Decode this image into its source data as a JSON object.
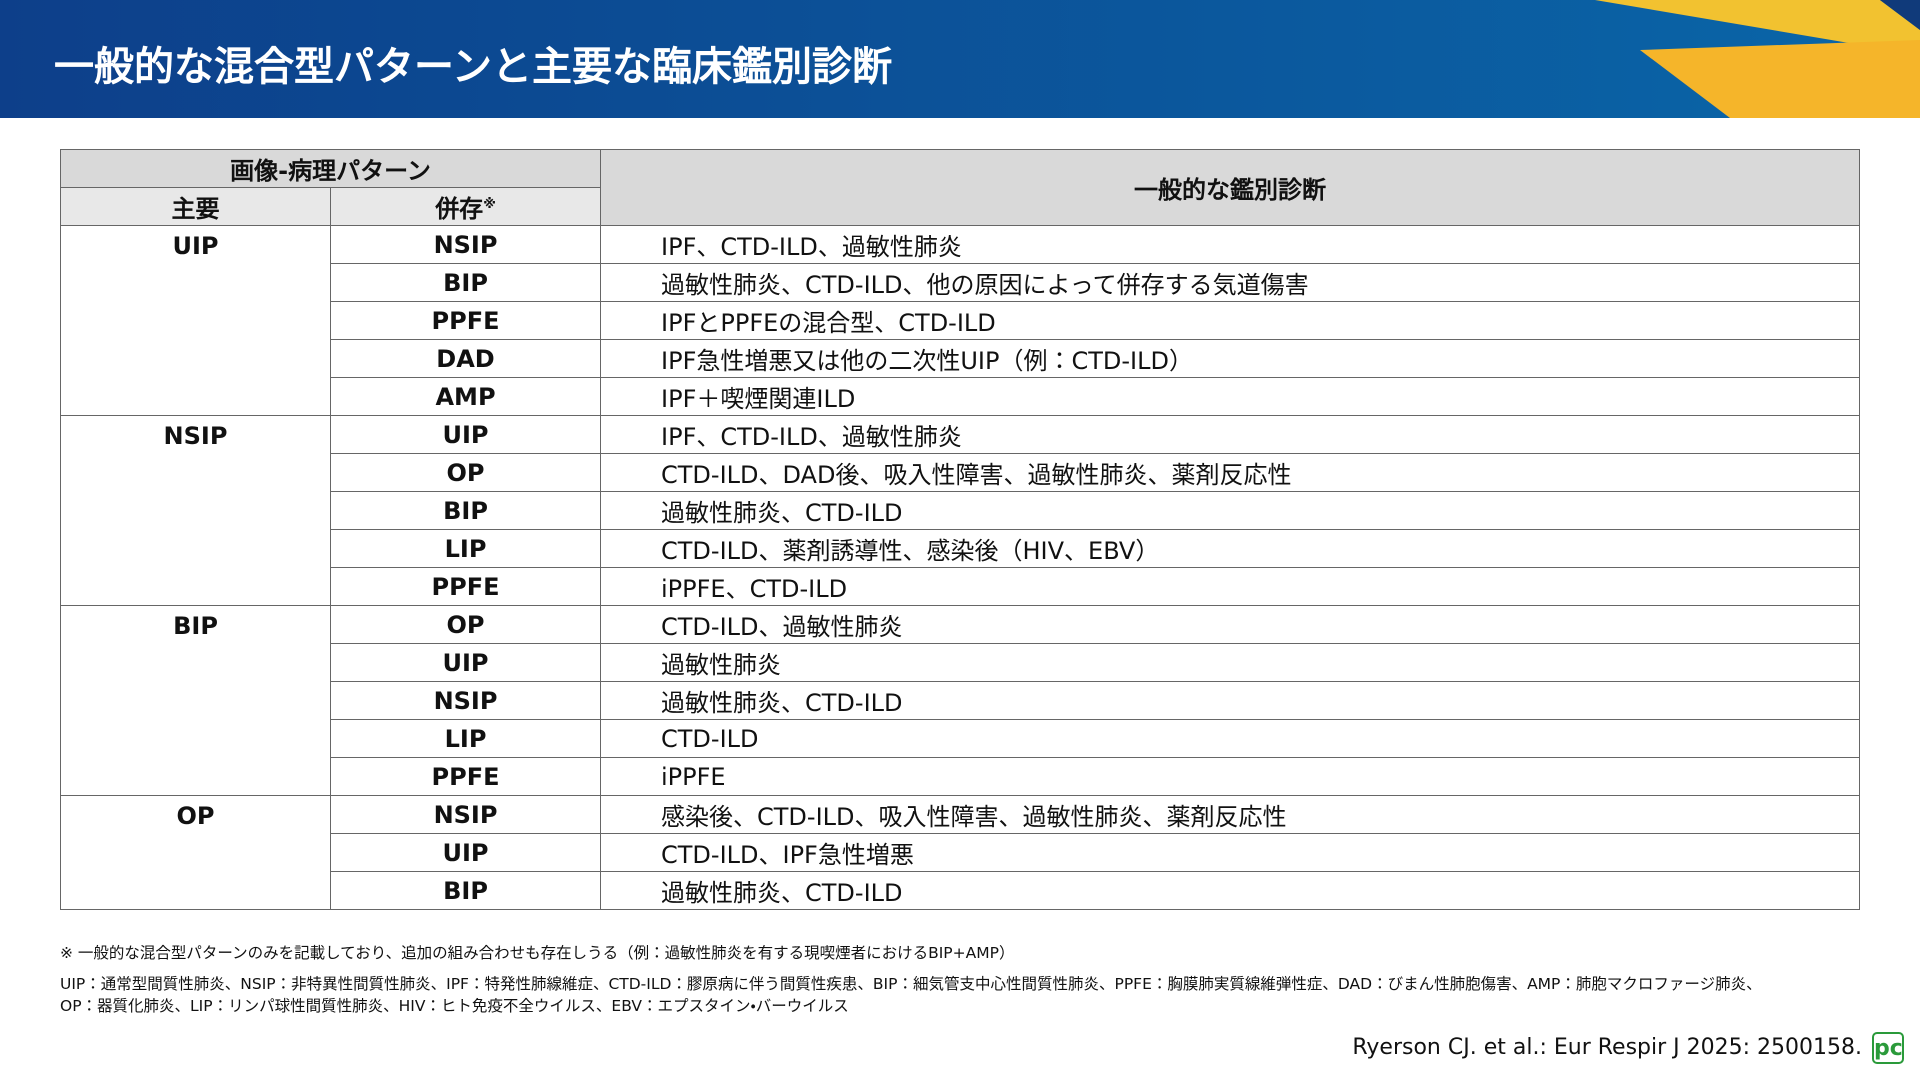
{
  "header": {
    "title": "一般的な混合型パターンと主要な臨床鑑別診断"
  },
  "table": {
    "header": {
      "group": "画像-病理パターン",
      "primary": "主要",
      "coexisting": "併存",
      "coexisting_mark": "※",
      "diagnosis": "一般的な鑑別診断"
    },
    "groups": [
      {
        "primary": "UIP",
        "rows": [
          [
            "NSIP",
            "IPF、CTD-ILD、過敏性肺炎"
          ],
          [
            "BIP",
            "過敏性肺炎、CTD-ILD、他の原因によって併存する気道傷害"
          ],
          [
            "PPFE",
            "IPFとPPFEの混合型、CTD-ILD"
          ],
          [
            "DAD",
            "IPF急性増悪又は他の二次性UIP（例：CTD-ILD）"
          ],
          [
            "AMP",
            "IPF＋喫煙関連ILD"
          ]
        ]
      },
      {
        "primary": "NSIP",
        "rows": [
          [
            "UIP",
            "IPF、CTD-ILD、過敏性肺炎"
          ],
          [
            "OP",
            "CTD-ILD、DAD後、吸入性障害、過敏性肺炎、薬剤反応性"
          ],
          [
            "BIP",
            "過敏性肺炎、CTD-ILD"
          ],
          [
            "LIP",
            "CTD-ILD、薬剤誘導性、感染後（HIV、EBV）"
          ],
          [
            "PPFE",
            "iPPFE、CTD-ILD"
          ]
        ]
      },
      {
        "primary": "BIP",
        "rows": [
          [
            "OP",
            "CTD-ILD、過敏性肺炎"
          ],
          [
            "UIP",
            "過敏性肺炎"
          ],
          [
            "NSIP",
            "過敏性肺炎、CTD-ILD"
          ],
          [
            "LIP",
            "CTD-ILD"
          ],
          [
            "PPFE",
            "iPPFE"
          ]
        ]
      },
      {
        "primary": "OP",
        "rows": [
          [
            "NSIP",
            "感染後、CTD-ILD、吸入性障害、過敏性肺炎、薬剤反応性"
          ],
          [
            "UIP",
            "CTD-ILD、IPF急性増悪"
          ],
          [
            "BIP",
            "過敏性肺炎、CTD-ILD"
          ]
        ]
      }
    ]
  },
  "footnotes": {
    "note": "※ 一般的な混合型パターンのみを記載しており、追加の組み合わせも存在しうる（例：過敏性肺炎を有する現喫煙者におけるBIP+AMP）",
    "abbreviations": [
      "UIP：通常型間質性肺炎、NSIP：非特異性間質性肺炎、IPF：特発性肺線維症、CTD-ILD：膠原病に伴う間質性疾患、BIP：細気管支中心性間質性肺炎、PPFE：胸膜肺実質線維弾性症、DAD：びまん性肺胞傷害、AMP：肺胞マクロファージ肺炎、",
      "OP：器質化肺炎、LIP：リンパ球性間質性肺炎、HIV：ヒト免疫不全ウイルス、EBV：エプスタイン・バーウイルス"
    ]
  },
  "citation": "Ryerson CJ. et al.: Eur Respir J 2025: 2500158.",
  "logo": "pc"
}
